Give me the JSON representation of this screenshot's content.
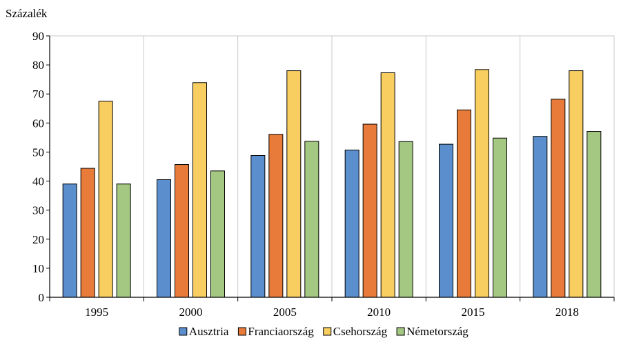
{
  "chart_data": {
    "type": "bar",
    "ylabel": "Százalék",
    "categories": [
      "1995",
      "2000",
      "2005",
      "2010",
      "2015",
      "2018"
    ],
    "ylim": [
      0,
      90
    ],
    "yticks": [
      0,
      10,
      20,
      30,
      40,
      50,
      60,
      70,
      80,
      90
    ],
    "grid": "vertical category separators",
    "legend_position": "bottom",
    "series": [
      {
        "name": "Ausztria",
        "color": "#5B8ECC",
        "values": [
          39.0,
          40.5,
          48.8,
          50.7,
          52.7,
          55.4
        ]
      },
      {
        "name": "Franciaország",
        "color": "#E87B3A",
        "values": [
          44.4,
          45.7,
          56.1,
          59.6,
          64.5,
          68.2
        ]
      },
      {
        "name": "Csehország",
        "color": "#F9CE61",
        "values": [
          67.5,
          73.9,
          78.0,
          77.3,
          78.4,
          78.0
        ]
      },
      {
        "name": "Németország",
        "color": "#A4C881",
        "values": [
          39.0,
          43.5,
          53.7,
          53.6,
          54.8,
          57.1
        ]
      }
    ]
  }
}
